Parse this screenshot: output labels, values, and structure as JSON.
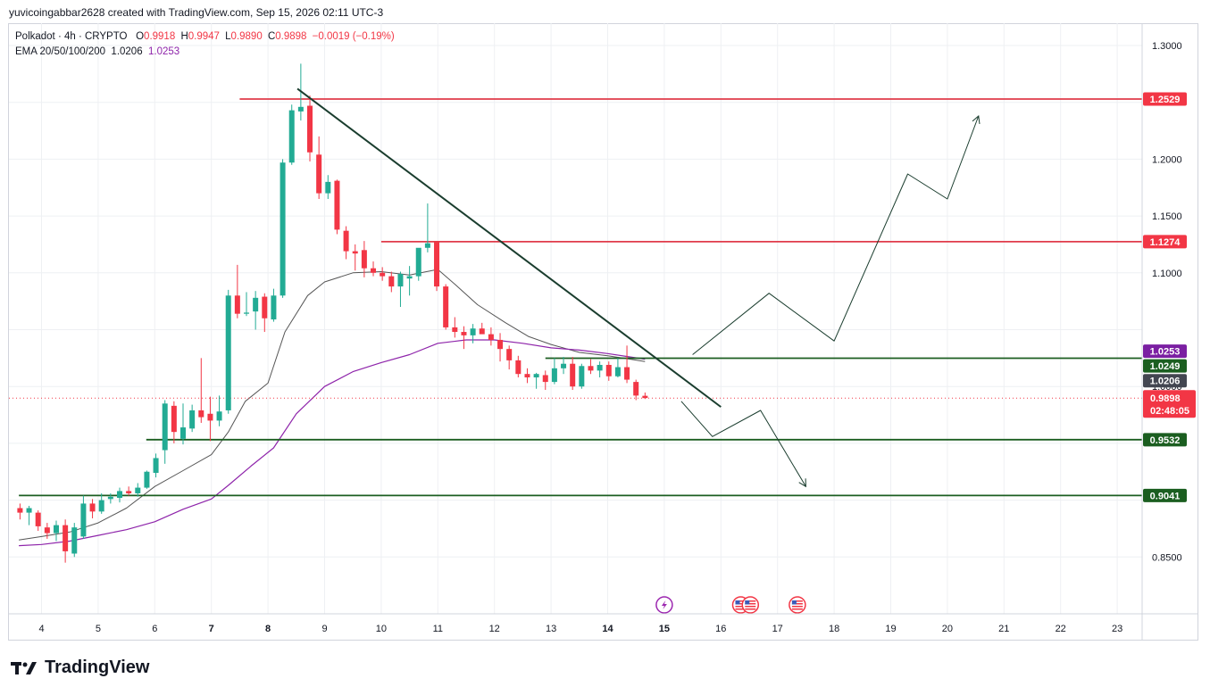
{
  "header": {
    "author_line": "yuvicoingabbar2628 created with TradingView.com, Sep 15, 2026 02:11 UTC-3"
  },
  "legend": {
    "symbol": "Polkadot · 4h · CRYPTO",
    "o_label": "O",
    "o_value": "0.9918",
    "h_label": "H",
    "h_value": "0.9947",
    "l_label": "L",
    "l_value": "0.9890",
    "c_label": "C",
    "c_value": "0.9898",
    "change": "−0.0019 (−0.19%)",
    "ema_label": "EMA 20/50/100/200",
    "ema_value_1": "1.0206",
    "ema_value_2": "1.0253"
  },
  "brand": {
    "name": "TradingView"
  },
  "colors": {
    "up": "#22ab94",
    "down": "#f23645",
    "resistance": "#e03b4a",
    "support": "#1b5e20",
    "trendline": "#1a3d2e",
    "ema_short": "#555555",
    "ema_long": "#8e24aa",
    "tag_red": "#f23645",
    "tag_green": "#1b5e20",
    "tag_purple": "#7b1fa2",
    "tag_gray": "#434651"
  },
  "icons": [
    "lightning-event-icon",
    "us-flag-event-icon",
    "us-flag-event-icon",
    "us-flag-event-icon"
  ],
  "chart_data": {
    "type": "candlestick",
    "timeframe": "4h",
    "yrange": [
      0.81,
      1.315
    ],
    "x_ticks": [
      {
        "label": "4",
        "day": 4
      },
      {
        "label": "5",
        "day": 5
      },
      {
        "label": "6",
        "day": 6
      },
      {
        "label": "7",
        "day": 7
      },
      {
        "label": "8",
        "day": 8
      },
      {
        "label": "9",
        "day": 9
      },
      {
        "label": "10",
        "day": 10
      },
      {
        "label": "11",
        "day": 11
      },
      {
        "label": "12",
        "day": 12
      },
      {
        "label": "13",
        "day": 13
      },
      {
        "label": "14",
        "day": 14
      },
      {
        "label": "15",
        "day": 15
      },
      {
        "label": "16",
        "day": 16
      },
      {
        "label": "17",
        "day": 17
      },
      {
        "label": "18",
        "day": 18
      },
      {
        "label": "19",
        "day": 19
      },
      {
        "label": "20",
        "day": 20
      },
      {
        "label": "21",
        "day": 21
      },
      {
        "label": "22",
        "day": 22
      },
      {
        "label": "23",
        "day": 23
      }
    ],
    "y_ticks": [
      {
        "label": "1.3000",
        "value": 1.3
      },
      {
        "label": "1.2000",
        "value": 1.2
      },
      {
        "label": "1.1500",
        "value": 1.15
      },
      {
        "label": "1.1000",
        "value": 1.1
      },
      {
        "label": "1.0000",
        "value": 1.0
      },
      {
        "label": "0.8500",
        "value": 0.85
      }
    ],
    "candles": [
      {
        "day": 3.62,
        "o": 0.893,
        "h": 0.897,
        "l": 0.883,
        "c": 0.889
      },
      {
        "day": 3.78,
        "o": 0.889,
        "h": 0.895,
        "l": 0.878,
        "c": 0.893
      },
      {
        "day": 3.94,
        "o": 0.889,
        "h": 0.891,
        "l": 0.873,
        "c": 0.877
      },
      {
        "day": 4.1,
        "o": 0.876,
        "h": 0.88,
        "l": 0.866,
        "c": 0.871
      },
      {
        "day": 4.26,
        "o": 0.871,
        "h": 0.882,
        "l": 0.864,
        "c": 0.878
      },
      {
        "day": 4.42,
        "o": 0.878,
        "h": 0.883,
        "l": 0.845,
        "c": 0.855
      },
      {
        "day": 4.58,
        "o": 0.853,
        "h": 0.88,
        "l": 0.85,
        "c": 0.876
      },
      {
        "day": 4.74,
        "o": 0.868,
        "h": 0.904,
        "l": 0.866,
        "c": 0.897
      },
      {
        "day": 4.9,
        "o": 0.897,
        "h": 0.901,
        "l": 0.884,
        "c": 0.89
      },
      {
        "day": 5.06,
        "o": 0.89,
        "h": 0.906,
        "l": 0.888,
        "c": 0.9
      },
      {
        "day": 5.22,
        "o": 0.901,
        "h": 0.906,
        "l": 0.897,
        "c": 0.903
      },
      {
        "day": 5.38,
        "o": 0.902,
        "h": 0.911,
        "l": 0.898,
        "c": 0.908
      },
      {
        "day": 5.54,
        "o": 0.908,
        "h": 0.912,
        "l": 0.904,
        "c": 0.906
      },
      {
        "day": 5.7,
        "o": 0.906,
        "h": 0.915,
        "l": 0.903,
        "c": 0.911
      },
      {
        "day": 5.86,
        "o": 0.911,
        "h": 0.926,
        "l": 0.91,
        "c": 0.925
      },
      {
        "day": 6.02,
        "o": 0.924,
        "h": 0.941,
        "l": 0.92,
        "c": 0.937
      },
      {
        "day": 6.18,
        "o": 0.944,
        "h": 0.988,
        "l": 0.932,
        "c": 0.985
      },
      {
        "day": 6.34,
        "o": 0.983,
        "h": 0.987,
        "l": 0.95,
        "c": 0.96
      },
      {
        "day": 6.5,
        "o": 0.954,
        "h": 0.985,
        "l": 0.949,
        "c": 0.964
      },
      {
        "day": 6.66,
        "o": 0.963,
        "h": 0.984,
        "l": 0.96,
        "c": 0.979
      },
      {
        "day": 6.82,
        "o": 0.979,
        "h": 1.025,
        "l": 0.968,
        "c": 0.973
      },
      {
        "day": 6.98,
        "o": 0.976,
        "h": 0.991,
        "l": 0.952,
        "c": 0.97
      },
      {
        "day": 7.14,
        "o": 0.97,
        "h": 0.992,
        "l": 0.965,
        "c": 0.978
      },
      {
        "day": 7.3,
        "o": 0.979,
        "h": 1.085,
        "l": 0.976,
        "c": 1.08
      },
      {
        "day": 7.46,
        "o": 1.08,
        "h": 1.107,
        "l": 1.06,
        "c": 1.064
      },
      {
        "day": 7.62,
        "o": 1.064,
        "h": 1.083,
        "l": 1.062,
        "c": 1.065
      },
      {
        "day": 7.78,
        "o": 1.066,
        "h": 1.084,
        "l": 1.05,
        "c": 1.078
      },
      {
        "day": 7.94,
        "o": 1.079,
        "h": 1.082,
        "l": 1.048,
        "c": 1.06
      },
      {
        "day": 8.1,
        "o": 1.059,
        "h": 1.086,
        "l": 1.057,
        "c": 1.08
      },
      {
        "day": 8.26,
        "o": 1.08,
        "h": 1.2,
        "l": 1.078,
        "c": 1.197
      },
      {
        "day": 8.42,
        "o": 1.197,
        "h": 1.248,
        "l": 1.195,
        "c": 1.243
      },
      {
        "day": 8.58,
        "o": 1.242,
        "h": 1.284,
        "l": 1.234,
        "c": 1.246
      },
      {
        "day": 8.74,
        "o": 1.247,
        "h": 1.256,
        "l": 1.198,
        "c": 1.206
      },
      {
        "day": 8.9,
        "o": 1.204,
        "h": 1.22,
        "l": 1.165,
        "c": 1.17
      },
      {
        "day": 9.06,
        "o": 1.17,
        "h": 1.186,
        "l": 1.165,
        "c": 1.18
      },
      {
        "day": 9.22,
        "o": 1.181,
        "h": 1.182,
        "l": 1.134,
        "c": 1.138
      },
      {
        "day": 9.38,
        "o": 1.137,
        "h": 1.141,
        "l": 1.112,
        "c": 1.119
      },
      {
        "day": 9.54,
        "o": 1.119,
        "h": 1.125,
        "l": 1.102,
        "c": 1.117
      },
      {
        "day": 9.7,
        "o": 1.12,
        "h": 1.128,
        "l": 1.096,
        "c": 1.104
      },
      {
        "day": 9.86,
        "o": 1.104,
        "h": 1.11,
        "l": 1.097,
        "c": 1.1
      },
      {
        "day": 10.02,
        "o": 1.1,
        "h": 1.105,
        "l": 1.093,
        "c": 1.097
      },
      {
        "day": 10.18,
        "o": 1.097,
        "h": 1.101,
        "l": 1.083,
        "c": 1.088
      },
      {
        "day": 10.34,
        "o": 1.088,
        "h": 1.101,
        "l": 1.07,
        "c": 1.099
      },
      {
        "day": 10.5,
        "o": 1.095,
        "h": 1.106,
        "l": 1.08,
        "c": 1.097
      },
      {
        "day": 10.66,
        "o": 1.097,
        "h": 1.12,
        "l": 1.093,
        "c": 1.122
      },
      {
        "day": 10.82,
        "o": 1.122,
        "h": 1.161,
        "l": 1.118,
        "c": 1.126
      },
      {
        "day": 10.98,
        "o": 1.127,
        "h": 1.128,
        "l": 1.084,
        "c": 1.088
      },
      {
        "day": 11.14,
        "o": 1.088,
        "h": 1.09,
        "l": 1.05,
        "c": 1.052
      },
      {
        "day": 11.3,
        "o": 1.052,
        "h": 1.061,
        "l": 1.043,
        "c": 1.048
      },
      {
        "day": 11.46,
        "o": 1.048,
        "h": 1.053,
        "l": 1.033,
        "c": 1.045
      },
      {
        "day": 11.62,
        "o": 1.045,
        "h": 1.055,
        "l": 1.038,
        "c": 1.051
      },
      {
        "day": 11.78,
        "o": 1.051,
        "h": 1.056,
        "l": 1.047,
        "c": 1.046
      },
      {
        "day": 11.94,
        "o": 1.046,
        "h": 1.052,
        "l": 1.036,
        "c": 1.041
      },
      {
        "day": 12.1,
        "o": 1.041,
        "h": 1.047,
        "l": 1.022,
        "c": 1.033
      },
      {
        "day": 12.26,
        "o": 1.033,
        "h": 1.036,
        "l": 1.015,
        "c": 1.023
      },
      {
        "day": 12.42,
        "o": 1.023,
        "h": 1.027,
        "l": 1.008,
        "c": 1.011
      },
      {
        "day": 12.58,
        "o": 1.011,
        "h": 1.016,
        "l": 1.003,
        "c": 1.008
      },
      {
        "day": 12.74,
        "o": 1.008,
        "h": 1.012,
        "l": 0.998,
        "c": 1.011
      },
      {
        "day": 12.9,
        "o": 1.01,
        "h": 1.014,
        "l": 0.997,
        "c": 1.004
      },
      {
        "day": 13.06,
        "o": 1.004,
        "h": 1.025,
        "l": 1.002,
        "c": 1.016
      },
      {
        "day": 13.22,
        "o": 1.016,
        "h": 1.026,
        "l": 1.011,
        "c": 1.02
      },
      {
        "day": 13.38,
        "o": 1.02,
        "h": 1.026,
        "l": 0.997,
        "c": 1.0
      },
      {
        "day": 13.54,
        "o": 1.0,
        "h": 1.02,
        "l": 0.998,
        "c": 1.018
      },
      {
        "day": 13.7,
        "o": 1.018,
        "h": 1.024,
        "l": 1.011,
        "c": 1.014
      },
      {
        "day": 13.86,
        "o": 1.014,
        "h": 1.022,
        "l": 1.008,
        "c": 1.019
      },
      {
        "day": 14.02,
        "o": 1.019,
        "h": 1.022,
        "l": 1.005,
        "c": 1.009
      },
      {
        "day": 14.18,
        "o": 1.009,
        "h": 1.025,
        "l": 1.008,
        "c": 1.017
      },
      {
        "day": 14.34,
        "o": 1.017,
        "h": 1.036,
        "l": 1.003,
        "c": 1.006
      },
      {
        "day": 14.5,
        "o": 1.004,
        "h": 1.006,
        "l": 0.988,
        "c": 0.992
      },
      {
        "day": 14.66,
        "o": 0.9918,
        "h": 0.9947,
        "l": 0.989,
        "c": 0.9898
      }
    ],
    "ema_20": [
      {
        "day": 3.6,
        "v": 0.865
      },
      {
        "day": 4.0,
        "v": 0.868
      },
      {
        "day": 4.5,
        "v": 0.872
      },
      {
        "day": 5.0,
        "v": 0.88
      },
      {
        "day": 5.5,
        "v": 0.893
      },
      {
        "day": 6.0,
        "v": 0.912
      },
      {
        "day": 6.5,
        "v": 0.926
      },
      {
        "day": 7.0,
        "v": 0.94
      },
      {
        "day": 7.3,
        "v": 0.96
      },
      {
        "day": 7.6,
        "v": 0.987
      },
      {
        "day": 8.0,
        "v": 1.003
      },
      {
        "day": 8.3,
        "v": 1.048
      },
      {
        "day": 8.7,
        "v": 1.08
      },
      {
        "day": 9.0,
        "v": 1.092
      },
      {
        "day": 9.5,
        "v": 1.1
      },
      {
        "day": 10.0,
        "v": 1.101
      },
      {
        "day": 10.5,
        "v": 1.098
      },
      {
        "day": 11.0,
        "v": 1.103
      },
      {
        "day": 11.3,
        "v": 1.09
      },
      {
        "day": 11.7,
        "v": 1.072
      },
      {
        "day": 12.2,
        "v": 1.056
      },
      {
        "day": 12.6,
        "v": 1.044
      },
      {
        "day": 13.0,
        "v": 1.037
      },
      {
        "day": 13.5,
        "v": 1.03
      },
      {
        "day": 14.0,
        "v": 1.027
      },
      {
        "day": 14.4,
        "v": 1.024
      },
      {
        "day": 14.66,
        "v": 1.022
      }
    ],
    "ema_50": [
      {
        "day": 3.6,
        "v": 0.86
      },
      {
        "day": 4.0,
        "v": 0.861
      },
      {
        "day": 4.5,
        "v": 0.864
      },
      {
        "day": 5.0,
        "v": 0.869
      },
      {
        "day": 5.5,
        "v": 0.874
      },
      {
        "day": 6.0,
        "v": 0.881
      },
      {
        "day": 6.5,
        "v": 0.892
      },
      {
        "day": 7.0,
        "v": 0.901
      },
      {
        "day": 7.3,
        "v": 0.913
      },
      {
        "day": 7.7,
        "v": 0.93
      },
      {
        "day": 8.1,
        "v": 0.946
      },
      {
        "day": 8.5,
        "v": 0.976
      },
      {
        "day": 9.0,
        "v": 1.0
      },
      {
        "day": 9.5,
        "v": 1.013
      },
      {
        "day": 10.0,
        "v": 1.021
      },
      {
        "day": 10.5,
        "v": 1.028
      },
      {
        "day": 11.0,
        "v": 1.038
      },
      {
        "day": 11.5,
        "v": 1.041
      },
      {
        "day": 12.0,
        "v": 1.041
      },
      {
        "day": 12.5,
        "v": 1.038
      },
      {
        "day": 13.0,
        "v": 1.034
      },
      {
        "day": 13.5,
        "v": 1.032
      },
      {
        "day": 14.0,
        "v": 1.029
      },
      {
        "day": 14.4,
        "v": 1.026
      },
      {
        "day": 14.66,
        "v": 1.024
      }
    ],
    "horizontal_levels": [
      {
        "name": "resistance-1.2529",
        "value": 1.2529,
        "label": "1.2529",
        "from_day": 7.5,
        "color": "#e03b4a"
      },
      {
        "name": "resistance-1.1274",
        "value": 1.1274,
        "label": "1.1274",
        "from_day": 10.0,
        "color": "#e03b4a"
      },
      {
        "name": "support-1.0249",
        "value": 1.0249,
        "label": "1.0249",
        "from_day": 12.9,
        "color": "#1b5e20"
      },
      {
        "name": "support-0.9532",
        "value": 0.9532,
        "label": "0.9532",
        "from_day": 5.85,
        "color": "#1b5e20"
      },
      {
        "name": "support-0.9041",
        "value": 0.9041,
        "label": "0.9041",
        "from_day": 3.6,
        "color": "#1b5e20"
      }
    ],
    "price_tags": [
      {
        "name": "tag-1.2529",
        "value": 1.2529,
        "label": "1.2529",
        "color": "#f23645"
      },
      {
        "name": "tag-1.1274",
        "value": 1.1274,
        "label": "1.1274",
        "color": "#f23645"
      },
      {
        "name": "tag-1.0253",
        "value": 1.0311,
        "label": "1.0253",
        "color": "#7b1fa2"
      },
      {
        "name": "tag-1.0249",
        "value": 1.0181,
        "label": "1.0249",
        "color": "#1b5e20"
      },
      {
        "name": "tag-1.0206",
        "value": 1.0051,
        "label": "1.0206",
        "color": "#434651"
      },
      {
        "name": "tag-0.9532",
        "value": 0.9532,
        "label": "0.9532",
        "color": "#1b5e20"
      },
      {
        "name": "tag-0.9041",
        "value": 0.9041,
        "label": "0.9041",
        "color": "#1b5e20"
      }
    ],
    "last_price": {
      "value": 0.9898,
      "label": "0.9898",
      "countdown": "02:48:05"
    },
    "trendline": [
      {
        "day": 8.52,
        "v": 1.262
      },
      {
        "day": 16.0,
        "v": 0.982
      }
    ],
    "projection_bullish": [
      {
        "day": 15.5,
        "v": 1.028
      },
      {
        "day": 16.85,
        "v": 1.082
      },
      {
        "day": 18.0,
        "v": 1.04
      },
      {
        "day": 19.3,
        "v": 1.187
      },
      {
        "day": 20.0,
        "v": 1.165
      },
      {
        "day": 20.55,
        "v": 1.238
      }
    ],
    "projection_bearish": [
      {
        "day": 15.3,
        "v": 0.987
      },
      {
        "day": 15.85,
        "v": 0.956
      },
      {
        "day": 16.7,
        "v": 0.979
      },
      {
        "day": 17.5,
        "v": 0.912
      }
    ],
    "events": [
      {
        "type": "lightning",
        "day": 15.0
      },
      {
        "type": "us-flag",
        "day": 16.35
      },
      {
        "type": "us-flag",
        "day": 16.52
      },
      {
        "type": "us-flag",
        "day": 17.35
      }
    ]
  }
}
